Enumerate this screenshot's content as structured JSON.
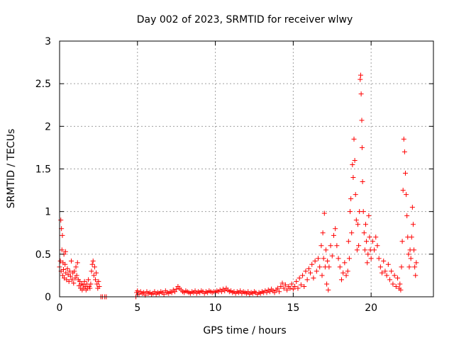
{
  "chart_data": {
    "type": "scatter",
    "title": "Day 002 of 2023, SRMTID for receiver wlwy",
    "xlabel": "GPS time / hours",
    "ylabel": "SRMTID / TECUs",
    "xlim": [
      0,
      24
    ],
    "ylim": [
      0,
      3
    ],
    "xticks": [
      0,
      5,
      10,
      15,
      20
    ],
    "yticks": [
      0,
      0.5,
      1,
      1.5,
      2,
      2.5,
      3
    ],
    "grid": true,
    "marker": "+",
    "color": "#ff0000",
    "series": [
      {
        "name": "SRMTID",
        "points": [
          [
            0.0,
            0.35
          ],
          [
            0.05,
            0.42
          ],
          [
            0.08,
            0.9
          ],
          [
            0.1,
            0.3
          ],
          [
            0.12,
            0.8
          ],
          [
            0.15,
            0.55
          ],
          [
            0.18,
            0.72
          ],
          [
            0.2,
            0.25
          ],
          [
            0.22,
            0.4
          ],
          [
            0.25,
            0.32
          ],
          [
            0.28,
            0.5
          ],
          [
            0.3,
            0.22
          ],
          [
            0.35,
            0.38
          ],
          [
            0.38,
            0.53
          ],
          [
            0.4,
            0.28
          ],
          [
            0.45,
            0.2
          ],
          [
            0.5,
            0.33
          ],
          [
            0.55,
            0.26
          ],
          [
            0.6,
            0.18
          ],
          [
            0.65,
            0.3
          ],
          [
            0.7,
            0.24
          ],
          [
            0.75,
            0.42
          ],
          [
            0.8,
            0.2
          ],
          [
            0.85,
            0.28
          ],
          [
            0.9,
            0.16
          ],
          [
            0.95,
            0.3
          ],
          [
            1.0,
            0.22
          ],
          [
            1.05,
            0.35
          ],
          [
            1.1,
            0.25
          ],
          [
            1.15,
            0.4
          ],
          [
            1.2,
            0.2
          ],
          [
            1.25,
            0.13
          ],
          [
            1.3,
            0.18
          ],
          [
            1.35,
            0.1
          ],
          [
            1.4,
            0.15
          ],
          [
            1.45,
            0.08
          ],
          [
            1.5,
            0.14
          ],
          [
            1.55,
            0.1
          ],
          [
            1.6,
            0.18
          ],
          [
            1.65,
            0.12
          ],
          [
            1.7,
            0.08
          ],
          [
            1.75,
            0.15
          ],
          [
            1.8,
            0.1
          ],
          [
            1.85,
            0.2
          ],
          [
            1.9,
            0.12
          ],
          [
            1.95,
            0.1
          ],
          [
            2.0,
            0.15
          ],
          [
            2.05,
            0.3
          ],
          [
            2.1,
            0.38
          ],
          [
            2.15,
            0.42
          ],
          [
            2.2,
            0.25
          ],
          [
            2.25,
            0.35
          ],
          [
            2.3,
            0.2
          ],
          [
            2.35,
            0.28
          ],
          [
            2.4,
            0.15
          ],
          [
            2.45,
            0.1
          ],
          [
            2.5,
            0.18
          ],
          [
            2.55,
            0.12
          ],
          [
            2.65,
            0.0
          ],
          [
            2.75,
            0.0
          ],
          [
            2.9,
            0.0
          ],
          [
            3.0,
            0.0
          ],
          [
            4.9,
            0.0
          ],
          [
            4.95,
            0.05
          ],
          [
            5.0,
            0.07
          ],
          [
            5.1,
            0.03
          ],
          [
            5.2,
            0.06
          ],
          [
            5.3,
            0.04
          ],
          [
            5.4,
            0.05
          ],
          [
            5.5,
            0.02
          ],
          [
            5.6,
            0.06
          ],
          [
            5.7,
            0.04
          ],
          [
            5.8,
            0.05
          ],
          [
            5.9,
            0.03
          ],
          [
            6.0,
            0.04
          ],
          [
            6.1,
            0.06
          ],
          [
            6.2,
            0.03
          ],
          [
            6.3,
            0.05
          ],
          [
            6.4,
            0.04
          ],
          [
            6.5,
            0.06
          ],
          [
            6.6,
            0.05
          ],
          [
            6.7,
            0.03
          ],
          [
            6.8,
            0.07
          ],
          [
            6.9,
            0.05
          ],
          [
            7.0,
            0.04
          ],
          [
            7.1,
            0.06
          ],
          [
            7.2,
            0.05
          ],
          [
            7.3,
            0.08
          ],
          [
            7.4,
            0.06
          ],
          [
            7.5,
            0.09
          ],
          [
            7.6,
            0.12
          ],
          [
            7.7,
            0.1
          ],
          [
            7.8,
            0.08
          ],
          [
            7.9,
            0.06
          ],
          [
            8.0,
            0.05
          ],
          [
            8.1,
            0.07
          ],
          [
            8.2,
            0.06
          ],
          [
            8.3,
            0.05
          ],
          [
            8.4,
            0.04
          ],
          [
            8.5,
            0.06
          ],
          [
            8.6,
            0.05
          ],
          [
            8.7,
            0.07
          ],
          [
            8.8,
            0.04
          ],
          [
            8.9,
            0.06
          ],
          [
            9.0,
            0.05
          ],
          [
            9.1,
            0.07
          ],
          [
            9.2,
            0.06
          ],
          [
            9.3,
            0.04
          ],
          [
            9.4,
            0.06
          ],
          [
            9.5,
            0.05
          ],
          [
            9.6,
            0.07
          ],
          [
            9.7,
            0.06
          ],
          [
            9.8,
            0.05
          ],
          [
            9.9,
            0.06
          ],
          [
            10.0,
            0.05
          ],
          [
            10.1,
            0.07
          ],
          [
            10.2,
            0.06
          ],
          [
            10.3,
            0.08
          ],
          [
            10.4,
            0.06
          ],
          [
            10.5,
            0.09
          ],
          [
            10.6,
            0.07
          ],
          [
            10.7,
            0.1
          ],
          [
            10.8,
            0.08
          ],
          [
            10.9,
            0.06
          ],
          [
            11.0,
            0.07
          ],
          [
            11.1,
            0.05
          ],
          [
            11.2,
            0.06
          ],
          [
            11.3,
            0.04
          ],
          [
            11.4,
            0.06
          ],
          [
            11.5,
            0.05
          ],
          [
            11.6,
            0.07
          ],
          [
            11.7,
            0.04
          ],
          [
            11.8,
            0.06
          ],
          [
            11.9,
            0.05
          ],
          [
            12.0,
            0.04
          ],
          [
            12.1,
            0.06
          ],
          [
            12.2,
            0.03
          ],
          [
            12.3,
            0.05
          ],
          [
            12.4,
            0.04
          ],
          [
            12.5,
            0.06
          ],
          [
            12.6,
            0.05
          ],
          [
            12.7,
            0.03
          ],
          [
            12.8,
            0.05
          ],
          [
            12.9,
            0.04
          ],
          [
            13.0,
            0.06
          ],
          [
            13.1,
            0.05
          ],
          [
            13.2,
            0.07
          ],
          [
            13.3,
            0.05
          ],
          [
            13.4,
            0.08
          ],
          [
            13.5,
            0.06
          ],
          [
            13.6,
            0.09
          ],
          [
            13.7,
            0.07
          ],
          [
            13.8,
            0.05
          ],
          [
            13.9,
            0.08
          ],
          [
            14.0,
            0.1
          ],
          [
            14.1,
            0.06
          ],
          [
            14.2,
            0.12
          ],
          [
            14.3,
            0.16
          ],
          [
            14.4,
            0.1
          ],
          [
            14.5,
            0.14
          ],
          [
            14.6,
            0.08
          ],
          [
            14.7,
            0.12
          ],
          [
            14.8,
            0.1
          ],
          [
            14.9,
            0.15
          ],
          [
            15.0,
            0.09
          ],
          [
            15.1,
            0.12
          ],
          [
            15.2,
            0.18
          ],
          [
            15.3,
            0.1
          ],
          [
            15.4,
            0.22
          ],
          [
            15.5,
            0.14
          ],
          [
            15.6,
            0.25
          ],
          [
            15.7,
            0.12
          ],
          [
            15.8,
            0.3
          ],
          [
            15.9,
            0.2
          ],
          [
            16.0,
            0.33
          ],
          [
            16.1,
            0.28
          ],
          [
            16.2,
            0.38
          ],
          [
            16.3,
            0.22
          ],
          [
            16.4,
            0.42
          ],
          [
            16.5,
            0.3
          ],
          [
            16.6,
            0.45
          ],
          [
            16.7,
            0.35
          ],
          [
            16.8,
            0.6
          ],
          [
            16.85,
            0.25
          ],
          [
            16.9,
            0.75
          ],
          [
            16.95,
            0.45
          ],
          [
            17.0,
            0.98
          ],
          [
            17.05,
            0.35
          ],
          [
            17.1,
            0.55
          ],
          [
            17.15,
            0.15
          ],
          [
            17.2,
            0.42
          ],
          [
            17.25,
            0.08
          ],
          [
            17.3,
            0.35
          ],
          [
            17.4,
            0.6
          ],
          [
            17.5,
            0.48
          ],
          [
            17.6,
            0.72
          ],
          [
            17.7,
            0.8
          ],
          [
            17.8,
            0.6
          ],
          [
            17.9,
            0.45
          ],
          [
            18.0,
            0.35
          ],
          [
            18.1,
            0.2
          ],
          [
            18.2,
            0.28
          ],
          [
            18.3,
            0.4
          ],
          [
            18.4,
            0.25
          ],
          [
            18.5,
            0.3
          ],
          [
            18.55,
            0.65
          ],
          [
            18.6,
            0.45
          ],
          [
            18.65,
            1.0
          ],
          [
            18.7,
            1.15
          ],
          [
            18.75,
            0.75
          ],
          [
            18.8,
            1.55
          ],
          [
            18.85,
            1.4
          ],
          [
            18.9,
            1.85
          ],
          [
            18.95,
            1.6
          ],
          [
            19.0,
            1.2
          ],
          [
            19.05,
            0.9
          ],
          [
            19.1,
            0.55
          ],
          [
            19.15,
            0.85
          ],
          [
            19.2,
            0.6
          ],
          [
            19.25,
            1.0
          ],
          [
            19.3,
            2.55
          ],
          [
            19.33,
            2.6
          ],
          [
            19.36,
            2.38
          ],
          [
            19.4,
            2.07
          ],
          [
            19.42,
            1.75
          ],
          [
            19.45,
            1.35
          ],
          [
            19.5,
            1.0
          ],
          [
            19.55,
            0.75
          ],
          [
            19.6,
            0.55
          ],
          [
            19.65,
            0.85
          ],
          [
            19.7,
            0.65
          ],
          [
            19.75,
            0.4
          ],
          [
            19.8,
            0.5
          ],
          [
            19.85,
            0.95
          ],
          [
            19.9,
            0.7
          ],
          [
            19.95,
            0.55
          ],
          [
            20.0,
            0.45
          ],
          [
            20.1,
            0.65
          ],
          [
            20.2,
            0.55
          ],
          [
            20.3,
            0.7
          ],
          [
            20.4,
            0.6
          ],
          [
            20.5,
            0.45
          ],
          [
            20.6,
            0.35
          ],
          [
            20.7,
            0.28
          ],
          [
            20.8,
            0.42
          ],
          [
            20.9,
            0.3
          ],
          [
            21.0,
            0.25
          ],
          [
            21.1,
            0.38
          ],
          [
            21.2,
            0.2
          ],
          [
            21.3,
            0.3
          ],
          [
            21.4,
            0.15
          ],
          [
            21.5,
            0.25
          ],
          [
            21.6,
            0.12
          ],
          [
            21.7,
            0.22
          ],
          [
            21.8,
            0.1
          ],
          [
            21.85,
            0.15
          ],
          [
            21.9,
            0.08
          ],
          [
            21.95,
            0.35
          ],
          [
            22.0,
            0.65
          ],
          [
            22.05,
            1.25
          ],
          [
            22.1,
            1.85
          ],
          [
            22.15,
            1.7
          ],
          [
            22.2,
            1.45
          ],
          [
            22.25,
            1.2
          ],
          [
            22.3,
            0.95
          ],
          [
            22.35,
            0.7
          ],
          [
            22.4,
            0.5
          ],
          [
            22.45,
            0.35
          ],
          [
            22.5,
            0.55
          ],
          [
            22.55,
            0.45
          ],
          [
            22.6,
            0.7
          ],
          [
            22.65,
            1.05
          ],
          [
            22.7,
            0.85
          ],
          [
            22.75,
            0.55
          ],
          [
            22.8,
            0.35
          ],
          [
            22.85,
            0.25
          ],
          [
            22.9,
            0.4
          ]
        ]
      }
    ]
  }
}
